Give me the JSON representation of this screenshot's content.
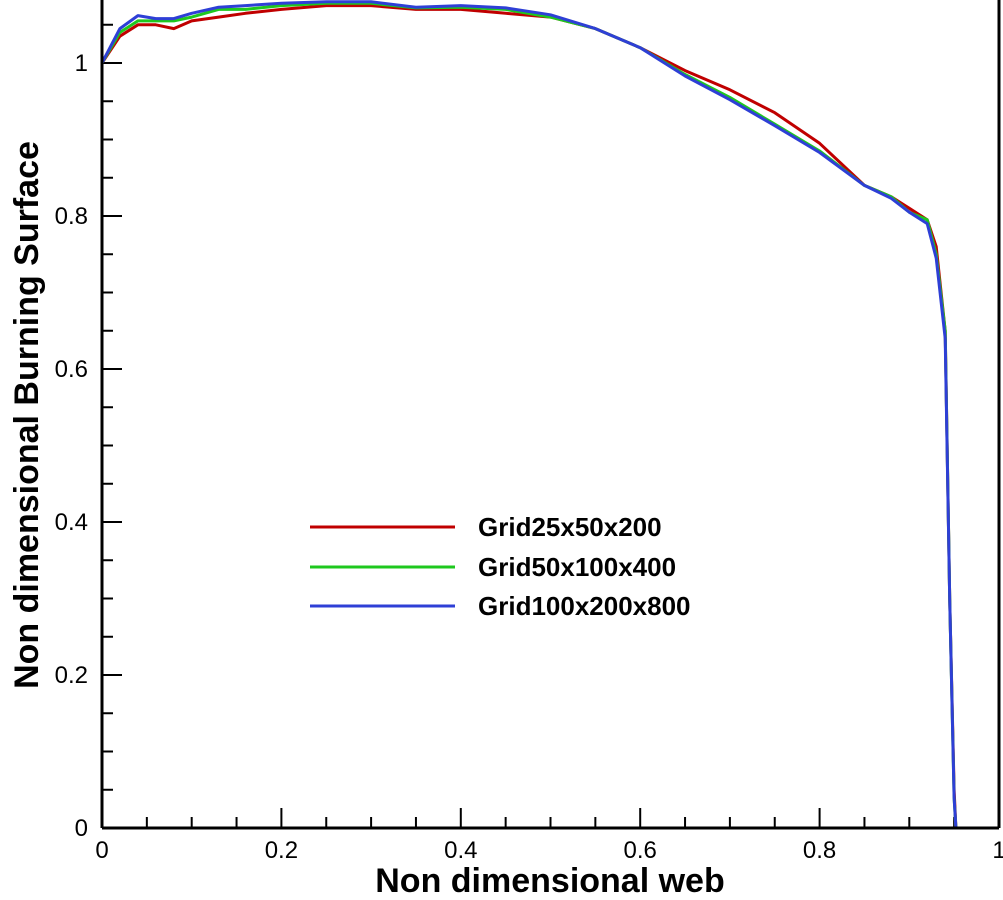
{
  "chart_data": {
    "type": "line",
    "title": "",
    "xlabel": "Non dimensional web",
    "ylabel": "Non dimensional Burning Surface",
    "xlim": [
      0,
      1
    ],
    "ylim": [
      0,
      1.08
    ],
    "x_ticks": [
      0,
      0.2,
      0.4,
      0.6,
      0.8,
      1
    ],
    "y_ticks": [
      0,
      0.2,
      0.4,
      0.6,
      0.8,
      1
    ],
    "x_tick_labels": [
      "0",
      "0.2",
      "0.4",
      "0.6",
      "0.8",
      "1"
    ],
    "y_tick_labels": [
      "0",
      "0.2",
      "0.4",
      "0.6",
      "0.8",
      "1"
    ],
    "x_minor_step": 0.05,
    "y_minor_step": 0.05,
    "grid": false,
    "legend_position": "center-left",
    "series": [
      {
        "name": "Grid25x50x200",
        "color": "#c00000",
        "x": [
          0,
          0.02,
          0.04,
          0.06,
          0.08,
          0.1,
          0.13,
          0.16,
          0.2,
          0.25,
          0.3,
          0.35,
          0.4,
          0.45,
          0.5,
          0.55,
          0.6,
          0.65,
          0.7,
          0.75,
          0.8,
          0.85,
          0.88,
          0.9,
          0.92,
          0.93,
          0.94,
          0.945,
          0.95,
          0.952
        ],
        "y": [
          1.0,
          1.035,
          1.05,
          1.05,
          1.045,
          1.055,
          1.06,
          1.065,
          1.07,
          1.075,
          1.075,
          1.07,
          1.07,
          1.065,
          1.06,
          1.045,
          1.02,
          0.99,
          0.965,
          0.935,
          0.895,
          0.84,
          0.825,
          0.81,
          0.795,
          0.76,
          0.65,
          0.3,
          0.05,
          0.0
        ]
      },
      {
        "name": "Grid50x100x400",
        "color": "#1ec81e",
        "x": [
          0,
          0.02,
          0.04,
          0.06,
          0.08,
          0.1,
          0.13,
          0.16,
          0.2,
          0.25,
          0.3,
          0.35,
          0.4,
          0.45,
          0.5,
          0.55,
          0.6,
          0.65,
          0.7,
          0.75,
          0.8,
          0.85,
          0.88,
          0.9,
          0.92,
          0.93,
          0.94,
          0.945,
          0.95,
          0.952
        ],
        "y": [
          1.0,
          1.04,
          1.055,
          1.055,
          1.055,
          1.06,
          1.07,
          1.07,
          1.075,
          1.078,
          1.078,
          1.072,
          1.073,
          1.07,
          1.06,
          1.045,
          1.02,
          0.985,
          0.955,
          0.92,
          0.885,
          0.84,
          0.825,
          0.805,
          0.795,
          0.75,
          0.65,
          0.3,
          0.04,
          0.0
        ]
      },
      {
        "name": "Grid100x200x800",
        "color": "#2e3fd6",
        "x": [
          0,
          0.02,
          0.04,
          0.06,
          0.08,
          0.1,
          0.13,
          0.16,
          0.2,
          0.25,
          0.3,
          0.35,
          0.4,
          0.45,
          0.5,
          0.55,
          0.6,
          0.65,
          0.7,
          0.75,
          0.8,
          0.85,
          0.88,
          0.9,
          0.92,
          0.93,
          0.94,
          0.945,
          0.95,
          0.952
        ],
        "y": [
          1.0,
          1.045,
          1.062,
          1.058,
          1.058,
          1.065,
          1.073,
          1.075,
          1.078,
          1.08,
          1.08,
          1.073,
          1.075,
          1.072,
          1.063,
          1.045,
          1.02,
          0.983,
          0.952,
          0.918,
          0.883,
          0.84,
          0.823,
          0.805,
          0.79,
          0.745,
          0.64,
          0.3,
          0.04,
          0.0
        ]
      }
    ]
  }
}
